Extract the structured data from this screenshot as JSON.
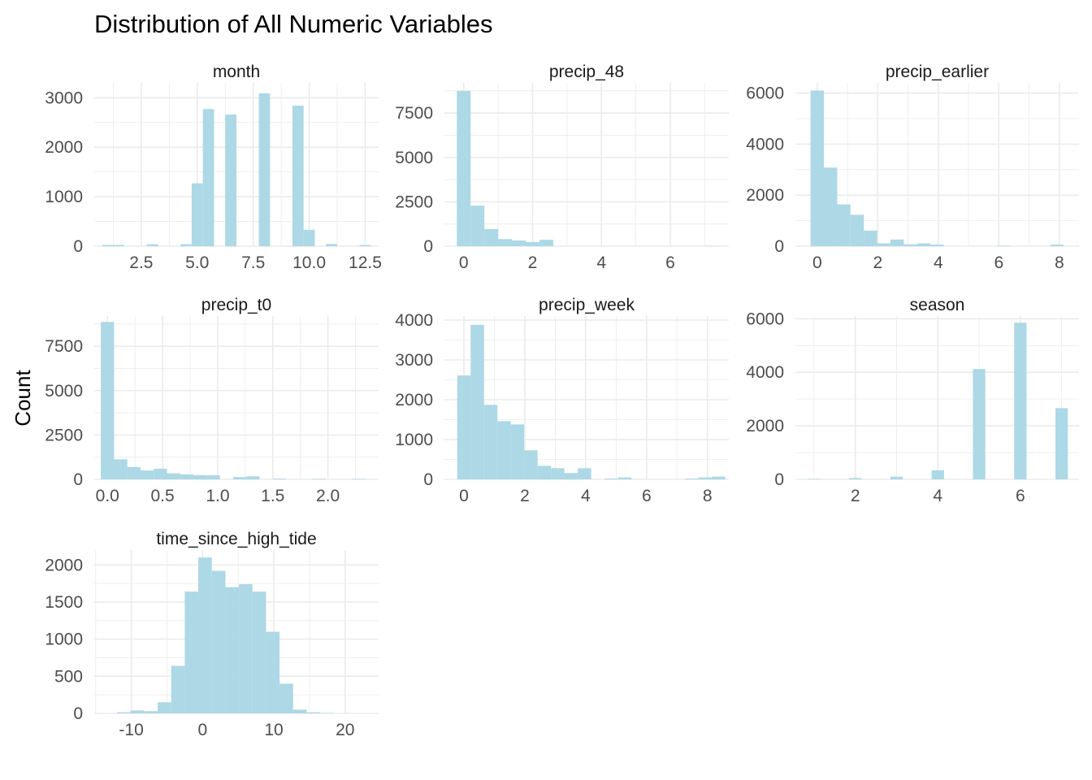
{
  "title": "Distribution of All Numeric Variables",
  "y_axis_label": "Count",
  "bar_color": "#add8e6",
  "grid_color": "#ebebeb",
  "chart_data": {
    "type": "bar",
    "title": "Distribution of All Numeric Variables",
    "ylabel": "Count",
    "xlabel": "",
    "grid": true,
    "layout": "facet grid, 3 columns, free scales",
    "facets": [
      {
        "name": "month",
        "xlim": [
          0.4,
          13.1
        ],
        "ylim": [
          0,
          3300
        ],
        "x_ticks": [
          2.5,
          5.0,
          7.5,
          10.0,
          12.5
        ],
        "x_tick_labels": [
          "2.5",
          "5.0",
          "7.5",
          "10.0",
          "12.5"
        ],
        "y_ticks": [
          0,
          1000,
          2000,
          3000
        ],
        "y_tick_labels": [
          "0",
          "1000",
          "2000",
          "3000"
        ],
        "bins": [
          {
            "x0": 0.75,
            "x1": 1.25,
            "count": 25
          },
          {
            "x0": 1.25,
            "x1": 1.75,
            "count": 25
          },
          {
            "x0": 2.75,
            "x1": 3.25,
            "count": 40
          },
          {
            "x0": 4.25,
            "x1": 4.75,
            "count": 40
          },
          {
            "x0": 4.75,
            "x1": 5.25,
            "count": 1270
          },
          {
            "x0": 5.25,
            "x1": 5.75,
            "count": 2770
          },
          {
            "x0": 6.25,
            "x1": 6.75,
            "count": 2660
          },
          {
            "x0": 7.75,
            "x1": 8.25,
            "count": 3090
          },
          {
            "x0": 9.25,
            "x1": 9.75,
            "count": 2840
          },
          {
            "x0": 9.75,
            "x1": 10.25,
            "count": 330
          },
          {
            "x0": 10.75,
            "x1": 11.25,
            "count": 45
          },
          {
            "x0": 12.25,
            "x1": 12.75,
            "count": 25
          }
        ]
      },
      {
        "name": "precip_48",
        "xlim": [
          -0.56,
          7.7
        ],
        "ylim": [
          0,
          9200
        ],
        "x_ticks": [
          0,
          2,
          4,
          6
        ],
        "x_tick_labels": [
          "0",
          "2",
          "4",
          "6"
        ],
        "y_ticks": [
          0,
          2500,
          5000,
          7500
        ],
        "y_tick_labels": [
          "0",
          "2500",
          "5000",
          "7500"
        ],
        "bins": [
          {
            "x0": -0.2,
            "x1": 0.2,
            "count": 8750
          },
          {
            "x0": 0.2,
            "x1": 0.6,
            "count": 2280
          },
          {
            "x0": 0.6,
            "x1": 1.0,
            "count": 960
          },
          {
            "x0": 1.0,
            "x1": 1.4,
            "count": 400
          },
          {
            "x0": 1.4,
            "x1": 1.8,
            "count": 320
          },
          {
            "x0": 1.8,
            "x1": 2.2,
            "count": 230
          },
          {
            "x0": 2.2,
            "x1": 2.6,
            "count": 360
          },
          {
            "x0": 7.0,
            "x1": 7.4,
            "count": 15
          }
        ]
      },
      {
        "name": "precip_earlier",
        "xlim": [
          -0.72,
          8.65
        ],
        "ylim": [
          0,
          6400
        ],
        "x_ticks": [
          0,
          2,
          4,
          6,
          8
        ],
        "x_tick_labels": [
          "0",
          "2",
          "4",
          "6",
          "8"
        ],
        "y_ticks": [
          0,
          2000,
          4000,
          6000
        ],
        "y_tick_labels": [
          "0",
          "2000",
          "4000",
          "6000"
        ],
        "bins": [
          {
            "x0": -0.22,
            "x1": 0.22,
            "count": 6100
          },
          {
            "x0": 0.22,
            "x1": 0.66,
            "count": 3080
          },
          {
            "x0": 0.66,
            "x1": 1.1,
            "count": 1640
          },
          {
            "x0": 1.1,
            "x1": 1.54,
            "count": 1230
          },
          {
            "x0": 1.54,
            "x1": 1.98,
            "count": 610
          },
          {
            "x0": 1.98,
            "x1": 2.42,
            "count": 110
          },
          {
            "x0": 2.42,
            "x1": 2.86,
            "count": 260
          },
          {
            "x0": 2.86,
            "x1": 3.3,
            "count": 70
          },
          {
            "x0": 3.3,
            "x1": 3.74,
            "count": 110
          },
          {
            "x0": 3.74,
            "x1": 4.18,
            "count": 60
          },
          {
            "x0": 5.94,
            "x1": 6.38,
            "count": 20
          },
          {
            "x0": 7.7,
            "x1": 8.14,
            "count": 60
          }
        ]
      },
      {
        "name": "precip_t0",
        "xlim": [
          -0.12,
          2.46
        ],
        "ylim": [
          0,
          9200
        ],
        "x_ticks": [
          0,
          0.5,
          1.0,
          1.5,
          2.0
        ],
        "x_tick_labels": [
          "0.0",
          "0.5",
          "1.0",
          "1.5",
          "2.0"
        ],
        "y_ticks": [
          0,
          2500,
          5000,
          7500
        ],
        "y_tick_labels": [
          "0",
          "2500",
          "5000",
          "7500"
        ],
        "bins": [
          {
            "x0": -0.06,
            "x1": 0.06,
            "count": 8870
          },
          {
            "x0": 0.06,
            "x1": 0.18,
            "count": 1130
          },
          {
            "x0": 0.18,
            "x1": 0.3,
            "count": 700
          },
          {
            "x0": 0.3,
            "x1": 0.42,
            "count": 500
          },
          {
            "x0": 0.42,
            "x1": 0.54,
            "count": 600
          },
          {
            "x0": 0.54,
            "x1": 0.66,
            "count": 340
          },
          {
            "x0": 0.66,
            "x1": 0.78,
            "count": 280
          },
          {
            "x0": 0.78,
            "x1": 0.9,
            "count": 240
          },
          {
            "x0": 0.9,
            "x1": 1.02,
            "count": 230
          },
          {
            "x0": 1.14,
            "x1": 1.26,
            "count": 130
          },
          {
            "x0": 1.26,
            "x1": 1.38,
            "count": 170
          },
          {
            "x0": 1.5,
            "x1": 1.62,
            "count": 40
          },
          {
            "x0": 1.86,
            "x1": 1.98,
            "count": 30
          },
          {
            "x0": 2.22,
            "x1": 2.34,
            "count": 30
          }
        ]
      },
      {
        "name": "precip_week",
        "xlim": [
          -0.64,
          8.7
        ],
        "ylim": [
          0,
          4100
        ],
        "x_ticks": [
          0,
          2,
          4,
          6,
          8
        ],
        "x_tick_labels": [
          "0",
          "2",
          "4",
          "6",
          "8"
        ],
        "y_ticks": [
          0,
          1000,
          2000,
          3000,
          4000
        ],
        "y_tick_labels": [
          "0",
          "1000",
          "2000",
          "3000",
          "4000"
        ],
        "bins": [
          {
            "x0": -0.22,
            "x1": 0.22,
            "count": 2610
          },
          {
            "x0": 0.22,
            "x1": 0.66,
            "count": 3880
          },
          {
            "x0": 0.66,
            "x1": 1.1,
            "count": 1870
          },
          {
            "x0": 1.1,
            "x1": 1.54,
            "count": 1460
          },
          {
            "x0": 1.54,
            "x1": 1.98,
            "count": 1380
          },
          {
            "x0": 1.98,
            "x1": 2.42,
            "count": 730
          },
          {
            "x0": 2.42,
            "x1": 2.86,
            "count": 340
          },
          {
            "x0": 2.86,
            "x1": 3.3,
            "count": 280
          },
          {
            "x0": 3.3,
            "x1": 3.74,
            "count": 160
          },
          {
            "x0": 3.74,
            "x1": 4.18,
            "count": 280
          },
          {
            "x0": 4.62,
            "x1": 5.06,
            "count": 20
          },
          {
            "x0": 5.06,
            "x1": 5.5,
            "count": 50
          },
          {
            "x0": 7.26,
            "x1": 7.7,
            "count": 20
          },
          {
            "x0": 7.7,
            "x1": 8.14,
            "count": 50
          },
          {
            "x0": 8.14,
            "x1": 8.58,
            "count": 70
          }
        ]
      },
      {
        "name": "season",
        "xlim": [
          0.55,
          7.42
        ],
        "ylim": [
          0,
          6100
        ],
        "x_ticks": [
          2,
          4,
          6
        ],
        "x_tick_labels": [
          "2",
          "4",
          "6"
        ],
        "y_ticks": [
          0,
          2000,
          4000,
          6000
        ],
        "y_tick_labels": [
          "0",
          "2000",
          "4000",
          "6000"
        ],
        "bins": [
          {
            "x0": 0.85,
            "x1": 1.15,
            "count": 20
          },
          {
            "x0": 1.85,
            "x1": 2.15,
            "count": 50
          },
          {
            "x0": 2.85,
            "x1": 3.15,
            "count": 100
          },
          {
            "x0": 3.85,
            "x1": 4.15,
            "count": 340
          },
          {
            "x0": 4.85,
            "x1": 5.15,
            "count": 4120
          },
          {
            "x0": 5.85,
            "x1": 6.15,
            "count": 5850
          },
          {
            "x0": 6.85,
            "x1": 7.15,
            "count": 2660
          }
        ]
      },
      {
        "name": "time_since_high_tide",
        "xlim": [
          -15.2,
          24.7
        ],
        "ylim": [
          0,
          2200
        ],
        "x_ticks": [
          -10,
          0,
          10,
          20
        ],
        "x_tick_labels": [
          "-10",
          "0",
          "10",
          "20"
        ],
        "y_ticks": [
          0,
          500,
          1000,
          1500,
          2000
        ],
        "y_tick_labels": [
          "0",
          "500",
          "1000",
          "1500",
          "2000"
        ],
        "bins": [
          {
            "x0": -12.0,
            "x1": -10.1,
            "count": 15
          },
          {
            "x0": -10.1,
            "x1": -8.2,
            "count": 40
          },
          {
            "x0": -8.2,
            "x1": -6.3,
            "count": 30
          },
          {
            "x0": -6.3,
            "x1": -4.4,
            "count": 150
          },
          {
            "x0": -4.4,
            "x1": -2.5,
            "count": 640
          },
          {
            "x0": -2.5,
            "x1": -0.6,
            "count": 1640
          },
          {
            "x0": -0.6,
            "x1": 1.3,
            "count": 2100
          },
          {
            "x0": 1.3,
            "x1": 3.2,
            "count": 1920
          },
          {
            "x0": 3.2,
            "x1": 5.1,
            "count": 1700
          },
          {
            "x0": 5.1,
            "x1": 7.0,
            "count": 1740
          },
          {
            "x0": 7.0,
            "x1": 8.9,
            "count": 1640
          },
          {
            "x0": 8.9,
            "x1": 10.8,
            "count": 1100
          },
          {
            "x0": 10.8,
            "x1": 12.7,
            "count": 400
          },
          {
            "x0": 12.7,
            "x1": 14.6,
            "count": 50
          },
          {
            "x0": 14.6,
            "x1": 16.5,
            "count": 15
          },
          {
            "x0": 16.5,
            "x1": 18.4,
            "count": 5
          }
        ]
      }
    ]
  }
}
